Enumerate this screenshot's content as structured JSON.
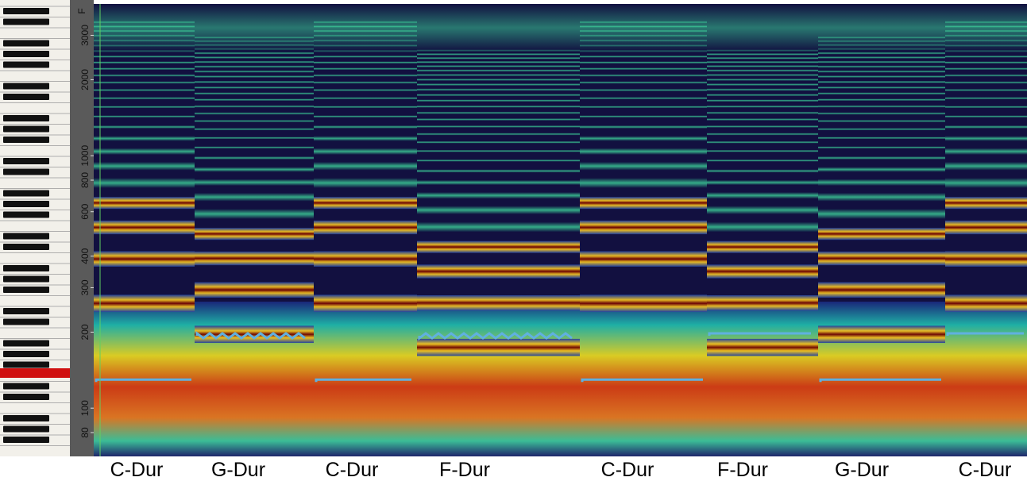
{
  "frequency_axis": {
    "unit_label": "F",
    "ticks": [
      3000,
      2000,
      1000,
      800,
      600,
      400,
      300,
      200,
      100,
      80
    ]
  },
  "segments": [
    "C-Dur",
    "G-Dur",
    "C-Dur",
    "F-Dur",
    "C-Dur",
    "F-Dur",
    "G-Dur",
    "C-Dur"
  ]
}
